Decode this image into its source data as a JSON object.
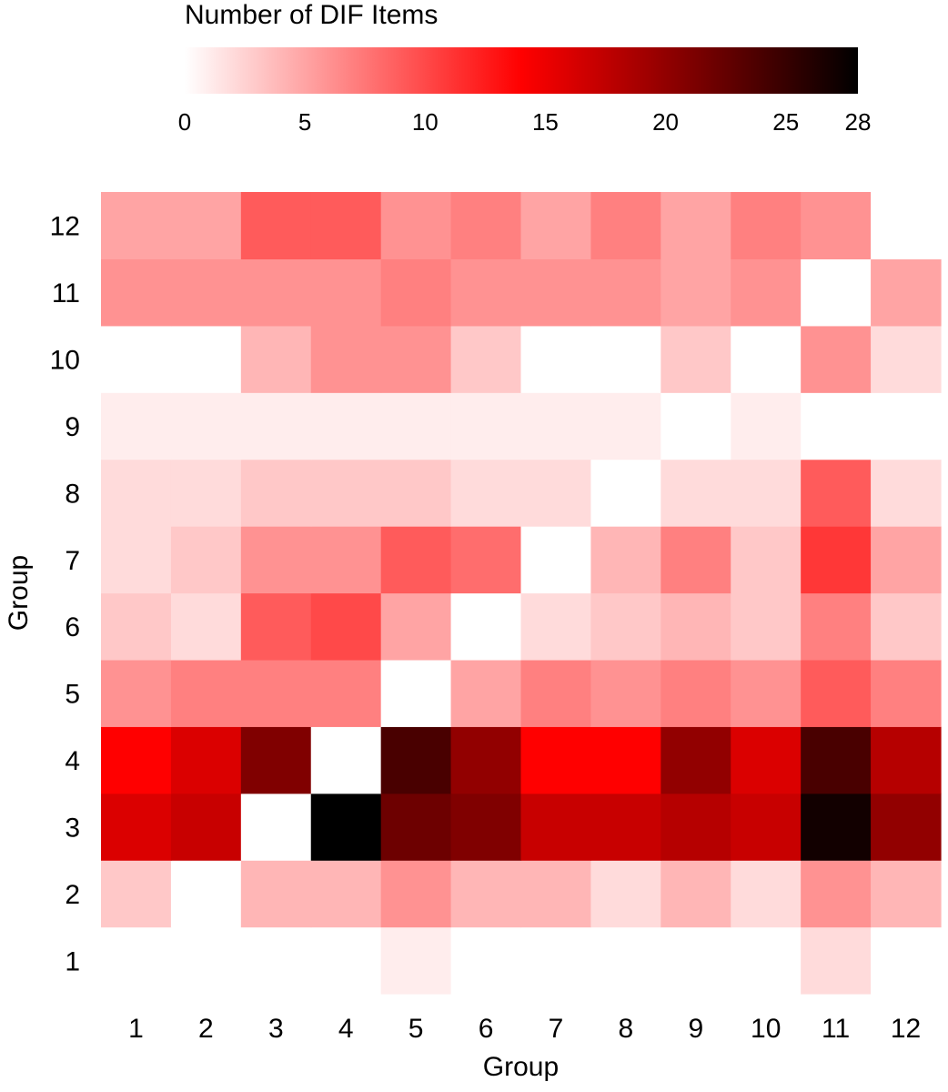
{
  "chart_data": {
    "type": "heatmap",
    "title": "",
    "xlabel": "Group",
    "ylabel": "Group",
    "x_categories": [
      "1",
      "2",
      "3",
      "4",
      "5",
      "6",
      "7",
      "8",
      "9",
      "10",
      "11",
      "12"
    ],
    "y_categories": [
      "1",
      "2",
      "3",
      "4",
      "5",
      "6",
      "7",
      "8",
      "9",
      "10",
      "11",
      "12"
    ],
    "value_range": [
      0,
      28
    ],
    "missing_value_color": "#ffffff",
    "colorbar": {
      "title": "Number of DIF Items",
      "ticks": [
        0,
        5,
        10,
        15,
        20,
        25,
        28
      ],
      "tick_labels": [
        "0",
        "5",
        "10",
        "15",
        "20",
        "25",
        "28"
      ],
      "colors": [
        {
          "value": 0,
          "color": "#ffffff"
        },
        {
          "value": 14,
          "color": "#ff0000"
        },
        {
          "value": 28,
          "color": "#000000"
        }
      ],
      "placement": "top"
    },
    "values": [
      [
        null,
        0,
        0,
        0,
        1,
        0,
        0,
        0,
        0,
        0,
        2,
        0
      ],
      [
        3,
        null,
        4,
        4,
        6,
        4,
        4,
        2,
        4,
        2,
        6,
        4
      ],
      [
        16,
        17,
        null,
        28,
        22,
        21,
        17,
        17,
        18,
        17,
        27,
        20
      ],
      [
        14,
        16,
        21,
        null,
        24,
        20,
        14,
        14,
        20,
        16,
        24,
        18
      ],
      [
        6,
        7,
        7,
        7,
        null,
        5,
        7,
        6,
        7,
        6,
        9,
        7
      ],
      [
        3,
        2,
        9,
        10,
        5,
        null,
        2,
        3,
        4,
        3,
        7,
        3
      ],
      [
        2,
        3,
        6,
        6,
        9,
        8,
        null,
        4,
        7,
        3,
        11,
        5
      ],
      [
        2,
        2,
        3,
        3,
        3,
        2,
        2,
        null,
        2,
        2,
        9,
        2
      ],
      [
        1,
        1,
        1,
        1,
        1,
        1,
        1,
        1,
        null,
        1,
        0,
        0
      ],
      [
        0,
        0,
        4,
        6,
        6,
        3,
        0,
        0,
        3,
        0,
        6,
        2
      ],
      [
        6,
        6,
        6,
        6,
        7,
        6,
        6,
        6,
        5,
        6,
        null,
        5
      ],
      [
        5,
        5,
        9,
        9,
        6,
        7,
        5,
        7,
        5,
        7,
        6,
        null
      ]
    ]
  }
}
